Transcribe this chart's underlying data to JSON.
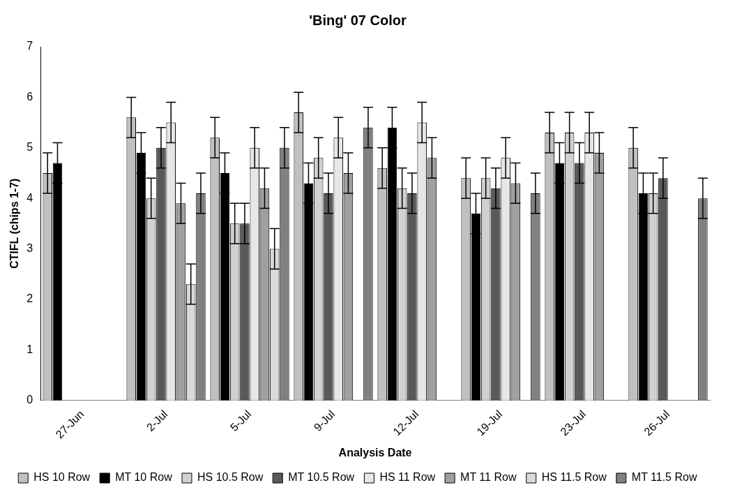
{
  "chart_data": {
    "type": "bar",
    "title": "'Bing' 07 Color",
    "xlabel": "Analysis Date",
    "ylabel": "CTIFL (chips 1-7)",
    "categories": [
      "27-Jun",
      "2-Jul",
      "5-Jul",
      "9-Jul",
      "12-Jul",
      "19-Jul",
      "23-Jul",
      "26-Jul"
    ],
    "ylim": [
      0,
      7
    ],
    "yticks": [
      0,
      1,
      2,
      3,
      4,
      5,
      6,
      7
    ],
    "grid": false,
    "legend": "bottom",
    "series": [
      {
        "name": "HS 10 Row",
        "color": "#c0c0c0",
        "values": [
          4.5,
          5.6,
          5.2,
          5.7,
          4.6,
          4.4,
          5.3,
          5.0
        ],
        "errors": [
          0.4,
          0.4,
          0.4,
          0.4,
          0.4,
          0.4,
          0.4,
          0.4
        ]
      },
      {
        "name": "MT 10 Row",
        "color": "#000000",
        "values": [
          4.7,
          4.9,
          4.5,
          4.3,
          5.4,
          3.7,
          4.7,
          4.1
        ],
        "errors": [
          0.4,
          0.4,
          0.4,
          0.4,
          0.4,
          0.4,
          0.4,
          0.4
        ]
      },
      {
        "name": "HS 10.5 Row",
        "color": "#d0d0d0",
        "values": [
          null,
          4.0,
          3.5,
          4.8,
          4.2,
          4.4,
          5.3,
          4.1
        ],
        "errors": [
          null,
          0.4,
          0.4,
          0.4,
          0.4,
          0.4,
          0.4,
          0.4
        ]
      },
      {
        "name": "MT 10.5 Row",
        "color": "#595959",
        "values": [
          null,
          5.0,
          3.5,
          4.1,
          4.1,
          4.2,
          4.7,
          4.4
        ],
        "errors": [
          null,
          0.4,
          0.4,
          0.4,
          0.4,
          0.4,
          0.4,
          0.4
        ]
      },
      {
        "name": "HS 11 Row",
        "color": "#e6e6e6",
        "values": [
          null,
          5.5,
          5.0,
          5.2,
          5.5,
          4.8,
          5.3,
          null
        ],
        "errors": [
          null,
          0.4,
          0.4,
          0.4,
          0.4,
          0.4,
          0.4,
          null
        ]
      },
      {
        "name": "MT 11 Row",
        "color": "#a0a0a0",
        "values": [
          null,
          3.9,
          4.2,
          4.5,
          4.8,
          4.3,
          4.9,
          null
        ],
        "errors": [
          null,
          0.4,
          0.4,
          0.4,
          0.4,
          0.4,
          0.4,
          null
        ]
      },
      {
        "name": "HS 11.5 Row",
        "color": "#d9d9d9",
        "values": [
          null,
          2.3,
          3.0,
          null,
          null,
          null,
          null,
          null
        ],
        "errors": [
          null,
          0.4,
          0.4,
          null,
          null,
          null,
          null,
          null
        ]
      },
      {
        "name": "MT 11.5 Row",
        "color": "#808080",
        "values": [
          null,
          4.1,
          5.0,
          5.4,
          null,
          4.1,
          null,
          4.0
        ],
        "errors": [
          null,
          0.4,
          0.4,
          0.4,
          null,
          0.4,
          null,
          0.4
        ]
      }
    ]
  }
}
